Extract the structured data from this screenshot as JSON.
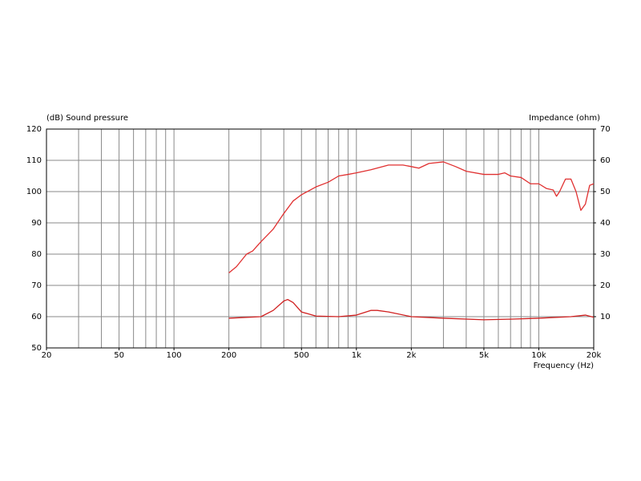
{
  "chart_data": {
    "type": "line",
    "title_left": "(dB)  Sound pressure",
    "title_right": "Impedance  (ohm)",
    "x_label": "Frequency  (Hz)",
    "xscale": "log",
    "xlim": [
      20,
      20000
    ],
    "xticks": [
      20,
      50,
      100,
      200,
      500,
      {
        "value": 1000,
        "label": "1k"
      },
      {
        "value": 2000,
        "label": "2k"
      },
      {
        "value": 5000,
        "label": "5k"
      },
      {
        "value": 10000,
        "label": "10k"
      },
      {
        "value": 20000,
        "label": "20k"
      }
    ],
    "xgrid": [
      30,
      40,
      50,
      60,
      70,
      80,
      90,
      100,
      200,
      300,
      400,
      500,
      600,
      700,
      800,
      900,
      1000,
      2000,
      3000,
      4000,
      5000,
      6000,
      7000,
      8000,
      9000,
      10000
    ],
    "ylim": [
      50,
      120
    ],
    "yticks": [
      50,
      60,
      70,
      80,
      90,
      100,
      110,
      120
    ],
    "y2lim": [
      0,
      70
    ],
    "y2ticks": [
      10,
      20,
      30,
      40,
      50,
      60,
      70
    ],
    "grid": true,
    "series": [
      {
        "color": "#e03030",
        "x": [
          200,
          220,
          250,
          270,
          300,
          350,
          400,
          450,
          500,
          600,
          700,
          800,
          900,
          1000,
          1200,
          1500,
          1800,
          2000,
          2200,
          2500,
          3000,
          3500,
          4000,
          5000,
          6000,
          6500,
          7000,
          8000,
          9000,
          10000,
          11000,
          12000,
          12500,
          13000,
          14000,
          15000,
          16000,
          17000,
          18000,
          19000,
          20000
        ],
        "values": [
          74,
          76,
          80,
          81,
          84,
          88,
          93,
          97,
          99,
          101.5,
          103,
          105,
          105.5,
          106,
          107,
          108.5,
          108.5,
          108,
          107.5,
          109,
          109.5,
          108,
          106.5,
          105.5,
          105.5,
          106,
          105,
          104.5,
          102.5,
          102.5,
          101,
          100.5,
          98.5,
          100,
          104,
          104,
          100,
          94,
          96,
          102,
          102.5
        ]
      },
      {
        "color": "#d02020",
        "axis": "y2",
        "x": [
          200,
          300,
          350,
          400,
          420,
          450,
          500,
          600,
          800,
          1000,
          1200,
          1300,
          1500,
          2000,
          3000,
          5000,
          7000,
          10000,
          15000,
          18000,
          20000
        ],
        "values": [
          9.5,
          10,
          12,
          15,
          15.5,
          14.5,
          11.5,
          10.2,
          10,
          10.5,
          12,
          12,
          11.5,
          10,
          9.5,
          9,
          9.2,
          9.5,
          10,
          10.5,
          9.8
        ]
      }
    ]
  }
}
